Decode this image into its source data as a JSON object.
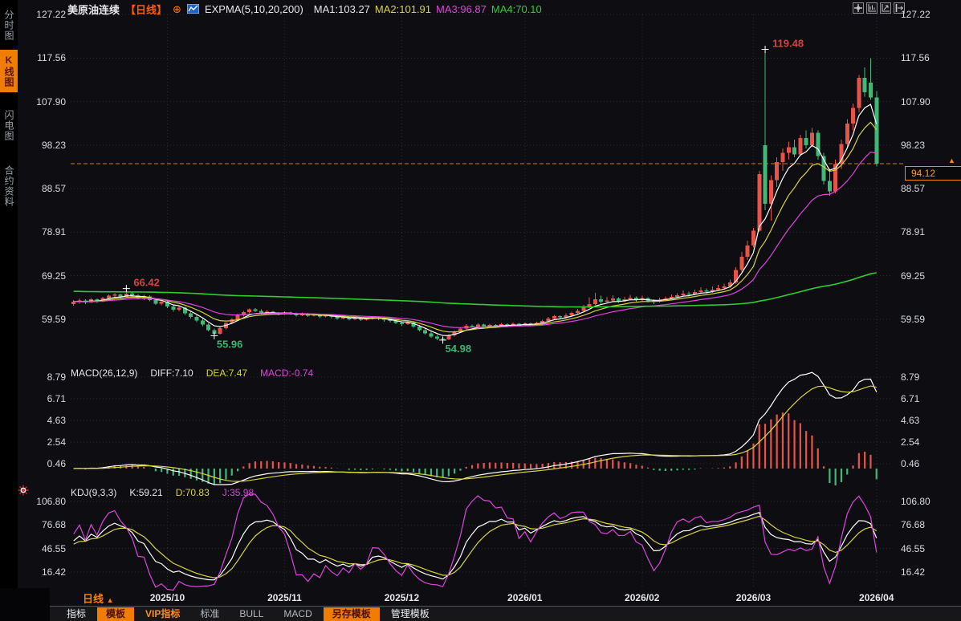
{
  "sidebar": {
    "items": [
      {
        "label": "分时图",
        "active": false
      },
      {
        "label": "K线图",
        "active": true
      },
      {
        "label": "闪电图",
        "active": false
      },
      {
        "label": "合约资料",
        "active": false
      }
    ]
  },
  "header": {
    "symbol": "美原油连续",
    "period": "【日线】",
    "indicator": "EXPMA(5,10,20,200)",
    "values": [
      {
        "label": "MA1:103.27",
        "color": "#e6e6e6"
      },
      {
        "label": "MA2:101.91",
        "color": "#d6d33c"
      },
      {
        "label": "MA3:96.87",
        "color": "#dd43dd"
      },
      {
        "label": "MA4:70.10",
        "color": "#2ecc2e"
      }
    ],
    "icons": [
      "circle-plus-icon",
      "mini-chart-icon"
    ]
  },
  "top_right_icons": [
    "crosshair-icon",
    "chart-box-icon",
    "chart-play-icon",
    "export-icon"
  ],
  "macd_panel": {
    "title": "MACD(26,12,9)",
    "values": [
      {
        "label": "DIFF:7.10",
        "color": "#e6e6e6"
      },
      {
        "label": "DEA:7.47",
        "color": "#d6d33c"
      },
      {
        "label": "MACD:-0.74",
        "color": "#dd43dd"
      }
    ],
    "axis_labels": [
      "8.79",
      "6.71",
      "4.63",
      "2.54",
      "0.46"
    ]
  },
  "kdj_panel": {
    "title": "KDJ(9,3,3)",
    "values": [
      {
        "label": "K:59.21",
        "color": "#e6e6e6"
      },
      {
        "label": "D:70.83",
        "color": "#d6d33c"
      },
      {
        "label": "J:35.98",
        "color": "#dd43dd"
      }
    ],
    "axis_labels": [
      "106.80",
      "76.68",
      "46.55",
      "16.42"
    ]
  },
  "x_axis": {
    "period_label": "日线",
    "period_arrow": "▲",
    "months": [
      {
        "label": "2025/10",
        "index": 16
      },
      {
        "label": "2025/11",
        "index": 36
      },
      {
        "label": "2025/12",
        "index": 56
      },
      {
        "label": "2026/01",
        "index": 77
      },
      {
        "label": "2026/02",
        "index": 97
      },
      {
        "label": "2026/03",
        "index": 116
      },
      {
        "label": "2026/04",
        "index": 137
      }
    ]
  },
  "bottom_toolbar": {
    "tabs": [
      {
        "label": "指标",
        "style": "plain"
      },
      {
        "label": "模板",
        "style": "active"
      },
      {
        "label": "VIP指标",
        "style": "orange"
      },
      {
        "label": "标准",
        "style": "dim"
      },
      {
        "label": "BULL",
        "style": "dim"
      },
      {
        "label": "MACD",
        "style": "dim"
      },
      {
        "label": "另存模板",
        "style": "active"
      },
      {
        "label": "管理模板",
        "style": "plain"
      }
    ]
  },
  "colors": {
    "up": "#e8534a",
    "down": "#41b878",
    "grid": "#2b2b31",
    "accent_orange": "#ff8a00",
    "price_line": "#c87c18",
    "annotation_red": "#d94040",
    "annotation_green": "#3cb371",
    "diff_line": "#ffffff",
    "dea_line": "#d6d33c",
    "macd_line": "#dd43dd"
  },
  "chart_data": {
    "type": "candlestick",
    "symbol": "美原油连续",
    "period": "日线",
    "last_price": "94.12",
    "price_axis": [
      "127.22",
      "117.56",
      "107.90",
      "98.23",
      "88.57",
      "78.91",
      "69.25",
      "59.59"
    ],
    "y_range": {
      "top": 127.22,
      "bottom": 59.59
    },
    "overlays": {
      "name": "EXPMA",
      "periods": [
        5,
        10,
        20,
        200
      ],
      "colors": [
        "#ffffff",
        "#d6d33c",
        "#dd43dd",
        "#2ecc2e"
      ],
      "ema200_seed": 65.8,
      "last_values": [
        103.27,
        101.91,
        96.87,
        70.1
      ]
    },
    "sub_indicators": {
      "macd": {
        "params": [
          26,
          12,
          9
        ],
        "diff": 7.1,
        "dea": 7.47,
        "macd": -0.74,
        "axis": [
          "8.79",
          "6.71",
          "4.63",
          "2.54",
          "0.46"
        ]
      },
      "kdj": {
        "params": [
          9,
          3,
          3
        ],
        "k": 59.21,
        "d": 70.83,
        "j": 35.98,
        "axis": [
          "106.80",
          "76.68",
          "46.55",
          "16.42"
        ]
      }
    },
    "annotations": [
      {
        "text": "119.48",
        "index": 118,
        "price": 119.48,
        "color": "#d94040",
        "pos": "top"
      },
      {
        "text": "66.42",
        "index": 9,
        "price": 66.42,
        "color": "#d94040",
        "pos": "top"
      },
      {
        "text": "55.96",
        "index": 24,
        "price": 55.96,
        "color": "#3cb371",
        "pos": "bottom"
      },
      {
        "text": "54.98",
        "index": 63,
        "price": 54.98,
        "color": "#3cb371",
        "pos": "bottom"
      }
    ],
    "ohlc": [
      [
        63.0,
        63.9,
        62.6,
        63.5
      ],
      [
        63.5,
        64.2,
        63.1,
        63.8
      ],
      [
        63.8,
        64.0,
        63.0,
        63.3
      ],
      [
        63.3,
        64.3,
        63.2,
        64.0
      ],
      [
        64.0,
        64.2,
        63.2,
        63.5
      ],
      [
        63.5,
        64.6,
        63.4,
        64.3
      ],
      [
        64.3,
        65.1,
        64.0,
        64.8
      ],
      [
        64.8,
        65.5,
        64.3,
        65.1
      ],
      [
        65.1,
        65.3,
        64.2,
        64.6
      ],
      [
        64.6,
        66.42,
        64.4,
        65.3
      ],
      [
        65.3,
        65.6,
        64.5,
        64.9
      ],
      [
        64.9,
        65.2,
        64.0,
        64.3
      ],
      [
        64.3,
        65.0,
        63.9,
        64.7
      ],
      [
        64.7,
        64.9,
        63.6,
        63.9
      ],
      [
        63.9,
        64.1,
        62.8,
        63.1
      ],
      [
        63.1,
        63.8,
        62.7,
        63.5
      ],
      [
        63.5,
        63.7,
        62.1,
        62.4
      ],
      [
        62.4,
        62.8,
        61.3,
        61.7
      ],
      [
        61.7,
        62.6,
        61.4,
        62.2
      ],
      [
        62.2,
        62.4,
        60.6,
        60.9
      ],
      [
        60.9,
        61.3,
        59.8,
        60.1
      ],
      [
        60.1,
        60.5,
        59.0,
        59.3
      ],
      [
        59.3,
        59.8,
        58.1,
        58.4
      ],
      [
        58.4,
        58.7,
        56.9,
        57.2
      ],
      [
        57.2,
        57.5,
        55.96,
        56.4
      ],
      [
        56.4,
        57.9,
        56.2,
        57.6
      ],
      [
        57.6,
        59.0,
        57.4,
        58.8
      ],
      [
        58.8,
        59.9,
        58.5,
        59.6
      ],
      [
        59.6,
        60.8,
        59.4,
        60.5
      ],
      [
        60.5,
        61.5,
        60.2,
        61.2
      ],
      [
        61.2,
        62.0,
        60.9,
        61.8
      ],
      [
        61.8,
        62.1,
        61.2,
        61.5
      ],
      [
        61.5,
        61.8,
        60.7,
        61.0
      ],
      [
        61.0,
        61.6,
        60.8,
        61.3
      ],
      [
        61.3,
        61.5,
        60.7,
        61.0
      ],
      [
        61.0,
        61.2,
        60.5,
        60.8
      ],
      [
        60.8,
        61.4,
        60.6,
        61.1
      ],
      [
        61.1,
        61.3,
        60.6,
        60.9
      ],
      [
        60.9,
        61.1,
        60.2,
        60.5
      ],
      [
        60.5,
        61.1,
        60.3,
        60.8
      ],
      [
        60.8,
        61.0,
        60.1,
        60.4
      ],
      [
        60.4,
        60.9,
        60.2,
        60.6
      ],
      [
        60.6,
        60.8,
        59.9,
        60.2
      ],
      [
        60.2,
        60.7,
        60.0,
        60.5
      ],
      [
        60.5,
        60.7,
        59.8,
        60.1
      ],
      [
        60.1,
        60.4,
        59.5,
        59.8
      ],
      [
        59.8,
        60.3,
        59.6,
        60.0
      ],
      [
        60.0,
        60.2,
        59.3,
        59.6
      ],
      [
        59.6,
        60.1,
        59.4,
        59.9
      ],
      [
        59.9,
        60.1,
        59.2,
        59.5
      ],
      [
        59.5,
        60.0,
        59.3,
        59.7
      ],
      [
        59.7,
        60.2,
        59.5,
        60.0
      ],
      [
        60.0,
        60.2,
        59.4,
        59.8
      ],
      [
        59.8,
        60.0,
        59.1,
        59.5
      ],
      [
        59.5,
        59.8,
        58.9,
        59.2
      ],
      [
        59.2,
        59.5,
        58.5,
        58.8
      ],
      [
        58.8,
        59.1,
        58.2,
        58.5
      ],
      [
        58.5,
        59.2,
        58.3,
        58.9
      ],
      [
        58.9,
        59.0,
        57.7,
        58.0
      ],
      [
        58.0,
        58.3,
        56.9,
        57.2
      ],
      [
        57.2,
        57.6,
        56.2,
        56.5
      ],
      [
        56.5,
        56.9,
        55.5,
        55.8
      ],
      [
        55.8,
        56.1,
        55.0,
        55.3
      ],
      [
        55.3,
        55.6,
        54.98,
        55.1
      ],
      [
        55.1,
        56.3,
        55.0,
        56.0
      ],
      [
        56.0,
        57.1,
        55.8,
        56.8
      ],
      [
        56.8,
        57.8,
        56.6,
        57.5
      ],
      [
        57.5,
        58.5,
        57.3,
        58.2
      ],
      [
        58.2,
        58.4,
        57.7,
        58.0
      ],
      [
        58.0,
        58.7,
        57.8,
        58.4
      ],
      [
        58.4,
        58.6,
        57.8,
        58.1
      ],
      [
        58.1,
        58.6,
        57.9,
        58.3
      ],
      [
        58.3,
        58.5,
        57.7,
        58.0
      ],
      [
        58.0,
        58.8,
        57.8,
        58.5
      ],
      [
        58.5,
        58.7,
        57.9,
        58.2
      ],
      [
        58.2,
        58.9,
        58.0,
        58.6
      ],
      [
        58.6,
        58.8,
        58.0,
        58.3
      ],
      [
        58.3,
        59.0,
        58.1,
        58.7
      ],
      [
        58.7,
        58.9,
        58.1,
        58.4
      ],
      [
        58.4,
        59.1,
        58.2,
        58.8
      ],
      [
        58.8,
        59.5,
        58.6,
        59.2
      ],
      [
        59.2,
        60.1,
        59.0,
        59.8
      ],
      [
        59.8,
        60.6,
        59.6,
        60.3
      ],
      [
        60.3,
        60.5,
        59.7,
        60.0
      ],
      [
        60.0,
        60.9,
        59.8,
        60.5
      ],
      [
        60.5,
        61.3,
        60.3,
        61.0
      ],
      [
        61.0,
        61.9,
        60.8,
        61.5
      ],
      [
        61.5,
        62.8,
        61.3,
        62.3
      ],
      [
        62.3,
        64.5,
        62.1,
        63.0
      ],
      [
        63.0,
        65.5,
        62.8,
        64.0
      ],
      [
        64.0,
        64.8,
        63.0,
        63.5
      ],
      [
        63.5,
        64.6,
        63.2,
        63.8
      ],
      [
        63.8,
        64.9,
        63.5,
        64.2
      ],
      [
        64.2,
        64.5,
        63.2,
        63.6
      ],
      [
        63.6,
        64.6,
        63.4,
        64.0
      ],
      [
        64.0,
        65.0,
        63.8,
        64.4
      ],
      [
        64.4,
        64.7,
        63.5,
        63.9
      ],
      [
        63.9,
        64.8,
        63.6,
        64.3
      ],
      [
        64.3,
        64.5,
        63.3,
        63.7
      ],
      [
        63.7,
        64.0,
        63.0,
        63.5
      ],
      [
        63.5,
        64.4,
        63.3,
        63.9
      ],
      [
        63.9,
        64.7,
        63.6,
        64.2
      ],
      [
        64.2,
        65.1,
        64.0,
        64.6
      ],
      [
        64.6,
        65.4,
        64.3,
        64.9
      ],
      [
        64.9,
        66.0,
        64.7,
        65.3
      ],
      [
        65.3,
        65.7,
        64.6,
        65.1
      ],
      [
        65.1,
        66.2,
        64.9,
        65.6
      ],
      [
        65.6,
        66.7,
        65.4,
        66.0
      ],
      [
        66.0,
        66.4,
        65.3,
        65.7
      ],
      [
        65.7,
        66.9,
        65.5,
        66.2
      ],
      [
        66.2,
        67.2,
        66.0,
        66.5
      ],
      [
        66.5,
        67.5,
        66.2,
        66.9
      ],
      [
        66.9,
        68.4,
        66.6,
        67.8
      ],
      [
        67.8,
        71.2,
        67.5,
        70.5
      ],
      [
        70.5,
        74.5,
        70.0,
        73.5
      ],
      [
        73.5,
        77.0,
        72.8,
        76.0
      ],
      [
        76.0,
        79.9,
        75.5,
        79.3
      ],
      [
        79.3,
        92.5,
        79.0,
        91.8
      ],
      [
        98.2,
        119.48,
        83.8,
        85.2
      ],
      [
        85.2,
        91.5,
        81.5,
        90.5
      ],
      [
        90.5,
        95.5,
        89.0,
        94.5
      ],
      [
        94.5,
        97.5,
        92.5,
        96.5
      ],
      [
        96.5,
        99.0,
        95.0,
        97.8
      ],
      [
        97.8,
        99.5,
        95.5,
        96.2
      ],
      [
        96.2,
        100.5,
        95.8,
        99.8
      ],
      [
        99.8,
        101.5,
        97.5,
        98.2
      ],
      [
        98.2,
        102.0,
        97.8,
        101.0
      ],
      [
        101.0,
        101.5,
        95.0,
        95.8
      ],
      [
        95.8,
        96.5,
        89.5,
        90.3
      ],
      [
        90.3,
        93.0,
        87.0,
        88.0
      ],
      [
        88.0,
        95.0,
        87.5,
        94.0
      ],
      [
        94.0,
        99.5,
        93.0,
        98.5
      ],
      [
        98.5,
        104.0,
        97.5,
        103.0
      ],
      [
        103.0,
        107.5,
        101.5,
        106.5
      ],
      [
        106.5,
        113.8,
        105.5,
        113.2
      ],
      [
        113.2,
        115.5,
        109.0,
        110.0
      ],
      [
        112.1,
        117.5,
        108.3,
        108.8
      ],
      [
        108.8,
        110.2,
        93.5,
        94.12
      ]
    ]
  }
}
